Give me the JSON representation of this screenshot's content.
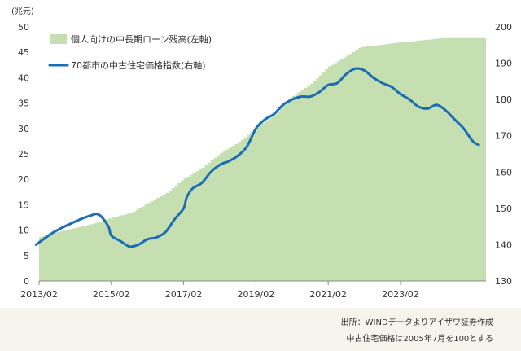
{
  "chart_data": {
    "type": "area+line",
    "unit_label": "(兆元)",
    "x_ticks": [
      "2013/02",
      "2015/02",
      "2017/02",
      "2019/02",
      "2021/02",
      "2023/02"
    ],
    "left_axis": {
      "min": 0,
      "max": 50,
      "step": 5
    },
    "right_axis": {
      "min": 130,
      "max": 200,
      "step": 10
    },
    "grid": false,
    "legend_position": "top-left",
    "series": [
      {
        "name": "個人向けの中長期ローン残高(左軸)",
        "type": "area",
        "axis": "left",
        "color": "#c5dfb0",
        "points": [
          [
            "2013/01",
            8.4
          ],
          [
            "2013/07",
            9.4
          ],
          [
            "2014/02",
            10.4
          ],
          [
            "2014/09",
            11.4
          ],
          [
            "2015/02",
            12.4
          ],
          [
            "2015/09",
            13.4
          ],
          [
            "2016/02",
            15.2
          ],
          [
            "2016/09",
            17.5
          ],
          [
            "2017/02",
            20.0
          ],
          [
            "2017/09",
            22.5
          ],
          [
            "2018/02",
            25.0
          ],
          [
            "2018/09",
            27.5
          ],
          [
            "2019/02",
            30.0
          ],
          [
            "2019/09",
            33.0
          ],
          [
            "2020/02",
            36.2
          ],
          [
            "2020/09",
            39.0
          ],
          [
            "2021/02",
            42.0
          ],
          [
            "2021/09",
            44.5
          ],
          [
            "2022/01",
            46.0
          ],
          [
            "2022/07",
            46.4
          ],
          [
            "2023/01",
            46.9
          ],
          [
            "2023/07",
            47.2
          ],
          [
            "2024/01",
            47.6
          ],
          [
            "2024/04",
            47.8
          ]
        ]
      },
      {
        "name": "70都市の中古住宅価格指数(右軸)",
        "type": "line",
        "axis": "right",
        "color": "#1a6eb5",
        "points": [
          [
            "2013/01",
            140.0
          ],
          [
            "2013/07",
            143.5
          ],
          [
            "2014/01",
            146.0
          ],
          [
            "2014/07",
            148.0
          ],
          [
            "2014/10",
            148.2
          ],
          [
            "2015/01",
            145.0
          ],
          [
            "2015/02",
            142.5
          ],
          [
            "2015/05",
            141.0
          ],
          [
            "2015/08",
            139.5
          ],
          [
            "2015/11",
            140.0
          ],
          [
            "2016/02",
            141.5
          ],
          [
            "2016/05",
            142.0
          ],
          [
            "2016/08",
            143.5
          ],
          [
            "2016/11",
            147.0
          ],
          [
            "2017/02",
            150.0
          ],
          [
            "2017/03",
            153.0
          ],
          [
            "2017/05",
            155.5
          ],
          [
            "2017/08",
            157.0
          ],
          [
            "2017/11",
            160.0
          ],
          [
            "2018/02",
            162.0
          ],
          [
            "2018/05",
            163.0
          ],
          [
            "2018/08",
            164.5
          ],
          [
            "2018/11",
            167.0
          ],
          [
            "2019/02",
            172.0
          ],
          [
            "2019/05",
            174.5
          ],
          [
            "2019/08",
            176.0
          ],
          [
            "2019/11",
            178.5
          ],
          [
            "2020/02",
            180.0
          ],
          [
            "2020/05",
            180.8
          ],
          [
            "2020/08",
            180.8
          ],
          [
            "2020/11",
            182.0
          ],
          [
            "2021/02",
            184.0
          ],
          [
            "2021/05",
            184.5
          ],
          [
            "2021/08",
            187.0
          ],
          [
            "2021/11",
            188.5
          ],
          [
            "2022/02",
            188.0
          ],
          [
            "2022/05",
            186.0
          ],
          [
            "2022/08",
            184.5
          ],
          [
            "2022/11",
            183.5
          ],
          [
            "2023/02",
            181.5
          ],
          [
            "2023/05",
            180.0
          ],
          [
            "2023/08",
            178.0
          ],
          [
            "2023/11",
            177.5
          ],
          [
            "2024/02",
            178.5
          ],
          [
            "2024/05",
            177.0
          ],
          [
            "2024/08",
            174.5
          ],
          [
            "2024/11",
            172.0
          ],
          [
            "2025/02",
            168.5
          ],
          [
            "2025/04",
            167.5
          ]
        ]
      }
    ]
  },
  "footer": {
    "source": "出所：WINDデータよりアイザワ証券作成",
    "note": "中古住宅価格は2005年7月を100とする"
  }
}
